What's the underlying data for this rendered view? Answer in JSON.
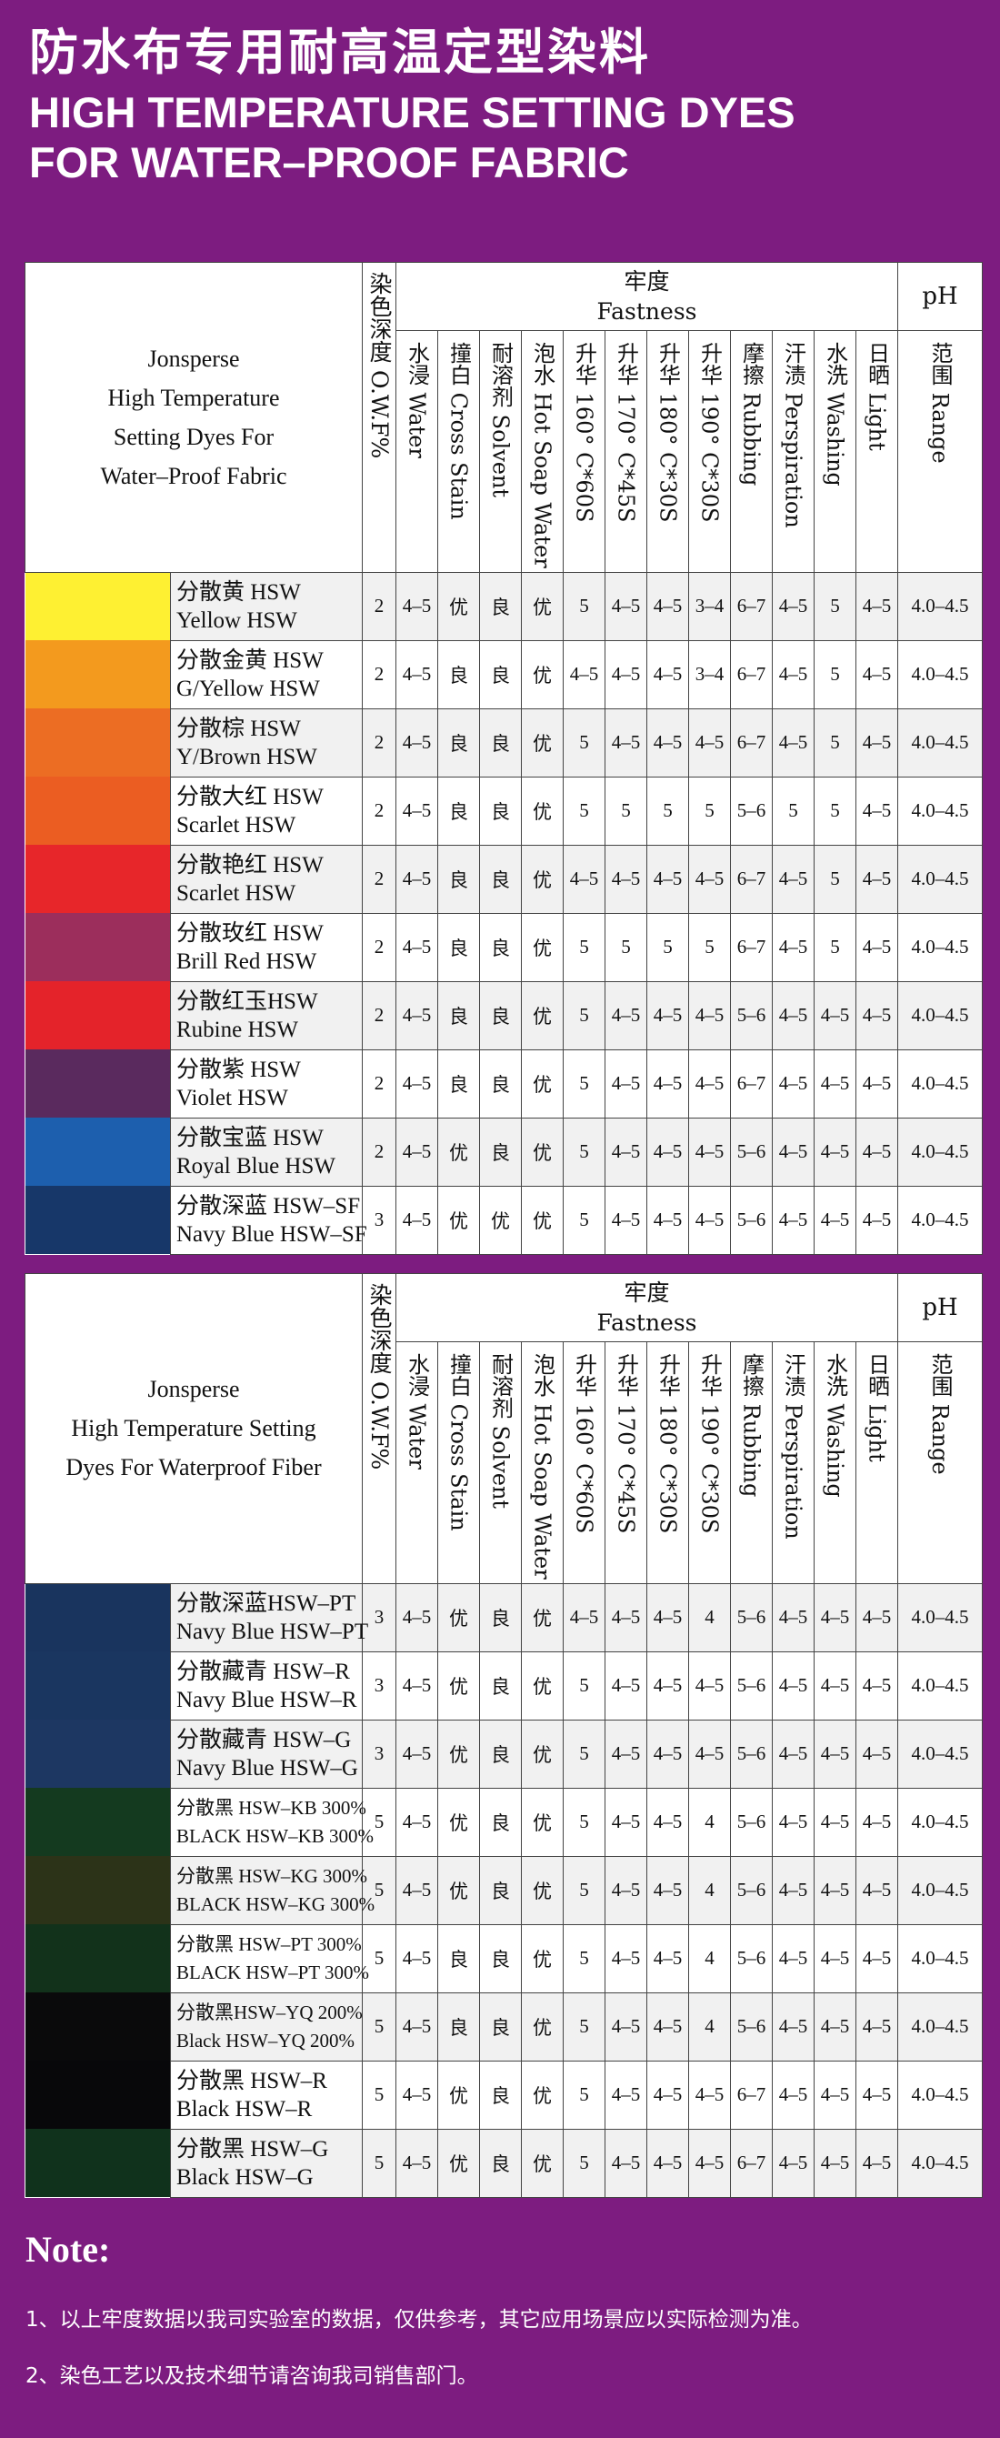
{
  "header": {
    "title_cn": "防水布专用耐高温定型染料",
    "title_en_1": "HIGH TEMPERATURE SETTING DYES",
    "title_en_2": "FOR WATER–PROOF FABRIC"
  },
  "columns": {
    "owf": "染色深度 O.W.F%",
    "fastness_cn": "牢度",
    "fastness_en": "Fastness",
    "ph_top": "pH",
    "heads": [
      "水浸 Water",
      "撞白 Cross Stain",
      "耐溶剂 Solvent",
      "泡水 Hot Soap Water",
      "升华 160° C*60S",
      "升华 170° C*45S",
      "升华 180° C*30S",
      "升华 190° C*30S",
      "摩擦 Rubbing",
      "汗渍 Perspiration",
      "水洗 Washing",
      "日晒 Light",
      "范围 Range"
    ]
  },
  "table1": {
    "brand": [
      "Jonsperse",
      "High Temperature",
      "Setting Dyes For",
      "Water–Proof Fabric"
    ],
    "rows": [
      {
        "color": "#fef032",
        "cn": "分散黄 HSW",
        "en": "Yellow HSW",
        "v": [
          "2",
          "4–5",
          "优",
          "良",
          "优",
          "5",
          "4–5",
          "4–5",
          "3–4",
          "6–7",
          "4–5",
          "5",
          "4–5",
          "4.0–4.5"
        ]
      },
      {
        "color": "#f39a1e",
        "cn": "分散金黄 HSW",
        "en": "G/Yellow HSW",
        "v": [
          "2",
          "4–5",
          "良",
          "良",
          "优",
          "4–5",
          "4–5",
          "4–5",
          "3–4",
          "6–7",
          "4–5",
          "5",
          "4–5",
          "4.0–4.5"
        ]
      },
      {
        "color": "#ec6d23",
        "cn": "分散棕 HSW",
        "en": "Y/Brown HSW",
        "v": [
          "2",
          "4–5",
          "良",
          "良",
          "优",
          "5",
          "4–5",
          "4–5",
          "4–5",
          "6–7",
          "4–5",
          "5",
          "4–5",
          "4.0–4.5"
        ]
      },
      {
        "color": "#eb5d22",
        "cn": "分散大红 HSW",
        "en": "Scarlet HSW",
        "v": [
          "2",
          "4–5",
          "良",
          "良",
          "优",
          "5",
          "5",
          "5",
          "5",
          "5–6",
          "5",
          "5",
          "4–5",
          "4.0–4.5"
        ]
      },
      {
        "color": "#e7262a",
        "cn": "分散艳红 HSW",
        "en": "Scarlet HSW",
        "v": [
          "2",
          "4–5",
          "良",
          "良",
          "优",
          "4–5",
          "4–5",
          "4–5",
          "4–5",
          "6–7",
          "4–5",
          "5",
          "4–5",
          "4.0–4.5"
        ]
      },
      {
        "color": "#9c2e5c",
        "cn": "分散玫红 HSW",
        "en": "Brill Red HSW",
        "v": [
          "2",
          "4–5",
          "良",
          "良",
          "优",
          "5",
          "5",
          "5",
          "5",
          "6–7",
          "4–5",
          "5",
          "4–5",
          "4.0–4.5"
        ]
      },
      {
        "color": "#e4232a",
        "cn": "分散红玉HSW",
        "en": "Rubine HSW",
        "v": [
          "2",
          "4–5",
          "良",
          "良",
          "优",
          "5",
          "4–5",
          "4–5",
          "4–5",
          "5–6",
          "4–5",
          "4–5",
          "4–5",
          "4.0–4.5"
        ]
      },
      {
        "color": "#5a2a5e",
        "cn": "分散紫 HSW",
        "en": "Violet HSW",
        "v": [
          "2",
          "4–5",
          "良",
          "良",
          "优",
          "5",
          "4–5",
          "4–5",
          "4–5",
          "6–7",
          "4–5",
          "4–5",
          "4–5",
          "4.0–4.5"
        ]
      },
      {
        "color": "#1d5fae",
        "cn": "分散宝蓝 HSW",
        "en": "Royal Blue HSW",
        "v": [
          "2",
          "4–5",
          "优",
          "良",
          "优",
          "5",
          "4–5",
          "4–5",
          "4–5",
          "5–6",
          "4–5",
          "4–5",
          "4–5",
          "4.0–4.5"
        ]
      },
      {
        "color": "#173769",
        "cn": "分散深蓝 HSW–SF",
        "en": "Navy Blue HSW–SF",
        "v": [
          "3",
          "4–5",
          "优",
          "优",
          "优",
          "5",
          "4–5",
          "4–5",
          "4–5",
          "5–6",
          "4–5",
          "4–5",
          "4–5",
          "4.0–4.5"
        ]
      }
    ]
  },
  "table2": {
    "brand": [
      "Jonsperse",
      "High Temperature Setting",
      "Dyes For Waterproof Fiber"
    ],
    "rows": [
      {
        "color": "#19345e",
        "cn": "分散深蓝HSW–PT",
        "en": "Navy Blue HSW–PT",
        "v": [
          "3",
          "4–5",
          "优",
          "良",
          "优",
          "4–5",
          "4–5",
          "4–5",
          "4",
          "5–6",
          "4–5",
          "4–5",
          "4–5",
          "4.0–4.5"
        ]
      },
      {
        "color": "#1a3660",
        "cn": "分散藏青 HSW–R",
        "en": "Navy Blue HSW–R",
        "v": [
          "3",
          "4–5",
          "优",
          "良",
          "优",
          "5",
          "4–5",
          "4–5",
          "4–5",
          "5–6",
          "4–5",
          "4–5",
          "4–5",
          "4.0–4.5"
        ]
      },
      {
        "color": "#1d3762",
        "cn": "分散藏青 HSW–G",
        "en": "Navy Blue HSW–G",
        "v": [
          "3",
          "4–5",
          "优",
          "良",
          "优",
          "5",
          "4–5",
          "4–5",
          "4–5",
          "5–6",
          "4–5",
          "4–5",
          "4–5",
          "4.0–4.5"
        ]
      },
      {
        "color": "#143a1f",
        "cn": "分散黑 HSW–KB 300%",
        "en": "BLACK HSW–KB 300%",
        "v": [
          "5",
          "4–5",
          "优",
          "良",
          "优",
          "5",
          "4–5",
          "4–5",
          "4",
          "5–6",
          "4–5",
          "4–5",
          "4–5",
          "4.0–4.5"
        ]
      },
      {
        "color": "#2c3318",
        "cn": "分散黑 HSW–KG 300%",
        "en": "BLACK HSW–KG 300%",
        "v": [
          "5",
          "4–5",
          "优",
          "良",
          "优",
          "5",
          "4–5",
          "4–5",
          "4",
          "5–6",
          "4–5",
          "4–5",
          "4–5",
          "4.0–4.5"
        ]
      },
      {
        "color": "#12321b",
        "cn": "分散黑 HSW–PT 300%",
        "en": "BLACK HSW–PT 300%",
        "v": [
          "5",
          "4–5",
          "良",
          "良",
          "优",
          "5",
          "4–5",
          "4–5",
          "4",
          "5–6",
          "4–5",
          "4–5",
          "4–5",
          "4.0–4.5"
        ]
      },
      {
        "color": "#0a0a0b",
        "cn": "分散黑HSW–YQ 200%",
        "en": "Black HSW–YQ 200%",
        "v": [
          "5",
          "4–5",
          "良",
          "良",
          "优",
          "5",
          "4–5",
          "4–5",
          "4",
          "5–6",
          "4–5",
          "4–5",
          "4–5",
          "4.0–4.5"
        ]
      },
      {
        "color": "#08080a",
        "cn": "分散黑 HSW–R",
        "en": "Black HSW–R",
        "v": [
          "5",
          "4–5",
          "优",
          "良",
          "优",
          "5",
          "4–5",
          "4–5",
          "4–5",
          "6–7",
          "4–5",
          "4–5",
          "4–5",
          "4.0–4.5"
        ]
      },
      {
        "color": "#10321c",
        "cn": "分散黑 HSW–G",
        "en": "Black HSW–G",
        "v": [
          "5",
          "4–5",
          "优",
          "良",
          "优",
          "5",
          "4–5",
          "4–5",
          "4–5",
          "6–7",
          "4–5",
          "4–5",
          "4–5",
          "4.0–4.5"
        ]
      }
    ]
  },
  "note": {
    "title": "Note:",
    "line1": "1、以上牢度数据以我司实验室的数据，仅供参考，其它应用场景应以实际检测为准。",
    "line2": "2、染色工艺以及技术细节请咨询我司销售部门。"
  }
}
